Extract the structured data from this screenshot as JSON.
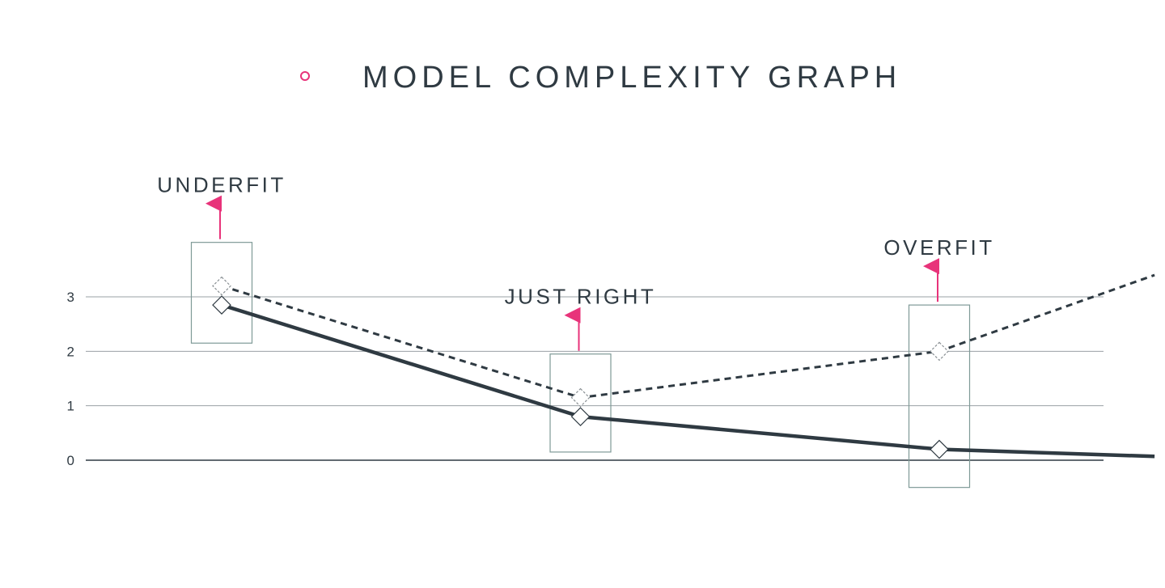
{
  "title": "MODEL COMPLEXITY GRAPH",
  "colors": {
    "accent": "#e8337a",
    "line": "#2f3a42",
    "grid": "#9aa0a4",
    "box": "#7f9a97"
  },
  "chart_data": {
    "type": "line",
    "title": "MODEL COMPLEXITY GRAPH",
    "xlabel": "",
    "ylabel": "",
    "ylim": [
      0,
      3
    ],
    "y_ticks": [
      0,
      1,
      2,
      3
    ],
    "grid": true,
    "x": [
      0,
      1,
      2,
      2.6
    ],
    "series": [
      {
        "style": "solid",
        "values": [
          2.85,
          0.8,
          0.2,
          0.07
        ],
        "marker_count": 3
      },
      {
        "style": "dashed",
        "values": [
          3.2,
          1.15,
          2.0,
          3.4
        ],
        "marker_count": 3
      }
    ],
    "annotations": [
      {
        "label": "UNDERFIT",
        "x": 0,
        "box_range": [
          2.15,
          4.0
        ]
      },
      {
        "label": "JUST RIGHT",
        "x": 1,
        "box_range": [
          0.15,
          1.95
        ]
      },
      {
        "label": "OVERFIT",
        "x": 2,
        "box_range": [
          -0.5,
          2.85
        ]
      }
    ]
  }
}
